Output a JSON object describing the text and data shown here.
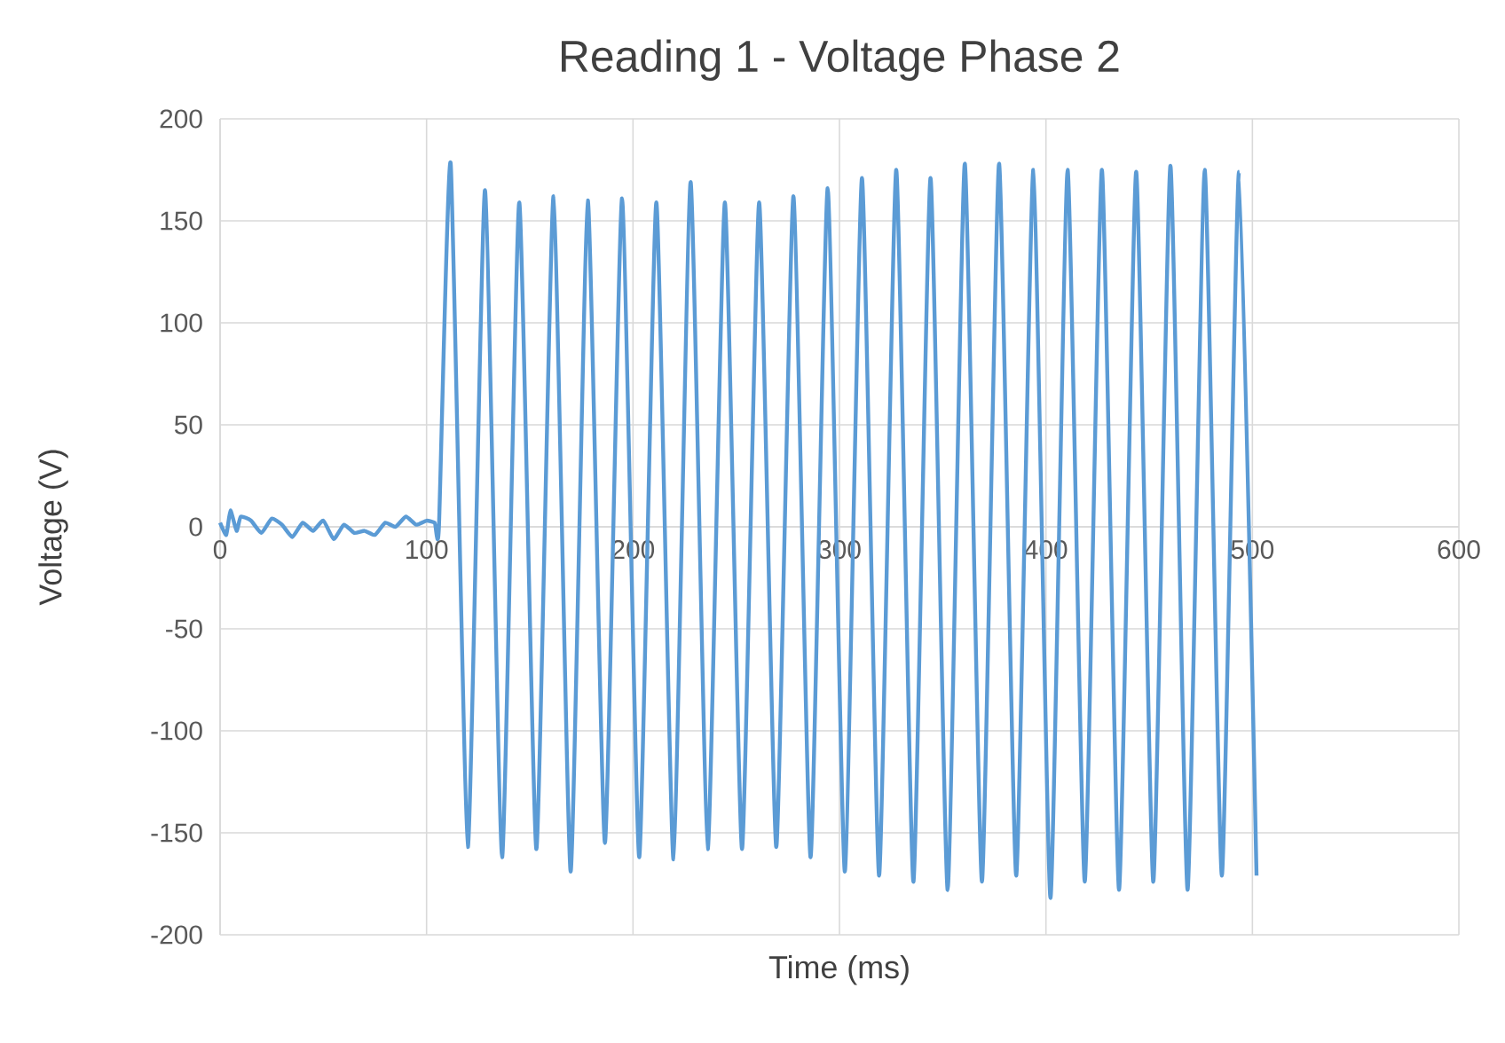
{
  "chart_data": {
    "type": "line",
    "title": "Reading 1 - Voltage Phase 2",
    "xlabel": "Time (ms)",
    "ylabel": "Voltage (V)",
    "xlim": [
      0,
      600
    ],
    "xticks": [
      0,
      100,
      200,
      300,
      400,
      500,
      600
    ],
    "ylim": [
      -200,
      200
    ],
    "yticks": [
      -200,
      -150,
      -100,
      -50,
      0,
      50,
      100,
      150,
      200
    ],
    "grid": true,
    "marker": "none",
    "line_style": "solid",
    "series": [
      {
        "color": "#5b9bd5",
        "x": [
          0,
          3,
          5,
          8,
          10,
          15,
          20,
          25,
          30,
          35,
          40,
          45,
          50,
          55,
          60,
          65,
          70,
          75,
          80,
          85,
          90,
          95,
          100,
          104,
          106,
          111.7,
          120.0,
          128.3,
          136.6,
          144.9,
          153.2,
          161.5,
          169.8,
          178.1,
          186.4,
          194.7,
          203.0,
          211.3,
          219.6,
          227.9,
          236.2,
          244.5,
          252.8,
          261.1,
          269.4,
          277.7,
          286.0,
          294.3,
          302.6,
          310.9,
          319.2,
          327.5,
          335.8,
          344.1,
          352.4,
          360.7,
          369.0,
          377.3,
          385.6,
          393.9,
          402.2,
          410.5,
          418.8,
          427.1,
          435.4,
          443.7,
          452.0,
          460.3,
          468.6,
          476.9,
          485.2,
          493.5,
          502
        ],
        "values": [
          2,
          -4,
          8,
          -2,
          5,
          3,
          -3,
          4,
          1,
          -5,
          2,
          -2,
          3,
          -6,
          1,
          -3,
          -2,
          -4,
          2,
          0,
          5,
          1,
          3,
          2,
          0,
          178,
          -157,
          165,
          -162,
          159,
          -158,
          162,
          -169,
          160,
          -155,
          161,
          -162,
          159,
          -163,
          169,
          -158,
          159,
          -158,
          159,
          -157,
          162,
          -162,
          166,
          -169,
          171,
          -171,
          175,
          -174,
          171,
          -178,
          178,
          -174,
          178,
          -171,
          175,
          -182,
          175,
          -174,
          175,
          -178,
          174,
          -174,
          177,
          -178,
          175,
          -171,
          174,
          -171
        ]
      }
    ]
  }
}
